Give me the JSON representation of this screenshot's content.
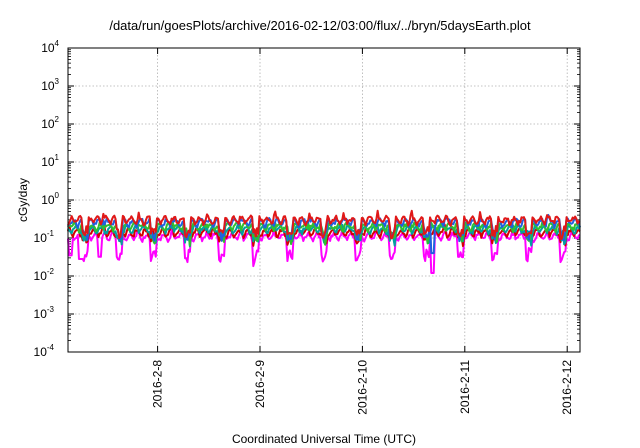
{
  "chart_data": {
    "type": "line",
    "title": "/data/run/goesPlots/archive/2016-02-12/03:00/flux/../bryn/5daysEarth.plot",
    "xlabel": "Coordinated Universal Time (UTC)",
    "ylabel": "cGy/day",
    "yscale": "log",
    "ylim": [
      0.0001,
      10000
    ],
    "xlim": [
      "2016-02-07 03:00",
      "2016-02-12 03:00"
    ],
    "grid": true,
    "xticks": [
      "2016-2-8",
      "2016-2-9",
      "2016-2-10",
      "2016-2-11",
      "2016-2-12"
    ],
    "yticks": [
      {
        "base": "10",
        "exp": "4"
      },
      {
        "base": "10",
        "exp": "3"
      },
      {
        "base": "10",
        "exp": "2"
      },
      {
        "base": "10",
        "exp": "1"
      },
      {
        "base": "10",
        "exp": "0"
      },
      {
        "base": "10",
        "exp": "-1"
      },
      {
        "base": "10",
        "exp": "-2"
      },
      {
        "base": "10",
        "exp": "-3"
      },
      {
        "base": "10",
        "exp": "-4"
      }
    ],
    "series": [
      {
        "color": "#ff00ff",
        "base": 0.11,
        "dip_depth": 3.5,
        "events": [
          {
            "t": "2016-02-07 03:30",
            "value": 0.035
          },
          {
            "t": "2016-02-07 06:00",
            "value": 0.028
          },
          {
            "t": "2016-02-07 10:30",
            "value": 0.032
          },
          {
            "t": "2016-02-10 16:30",
            "value": 0.012
          }
        ]
      },
      {
        "color": "#d40000",
        "base": 0.14,
        "dip_depth": 1.6,
        "events": []
      },
      {
        "color": "#00a0a0",
        "base": 0.17,
        "dip_depth": 1.7,
        "events": []
      },
      {
        "color": "#30c030",
        "base": 0.2,
        "dip_depth": 1.8,
        "events": []
      },
      {
        "color": "#2060e0",
        "base": 0.26,
        "dip_depth": 2.0,
        "events": [
          {
            "t": "2016-02-10 16:30",
            "value": 0.04
          }
        ]
      },
      {
        "color": "#e01818",
        "base": 0.3,
        "dip_depth": 2.0,
        "events": []
      }
    ]
  }
}
